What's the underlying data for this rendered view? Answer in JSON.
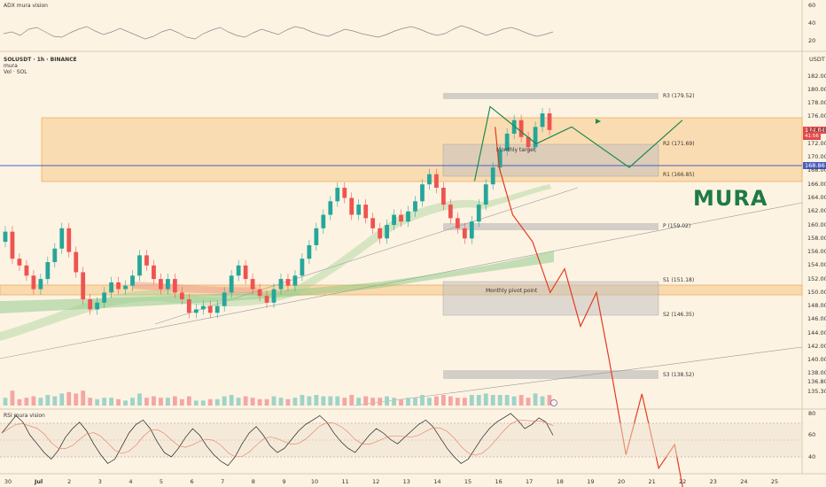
{
  "adx_panel": {
    "title": "ADX mura vision",
    "ticks": [
      "60",
      "40",
      "20"
    ],
    "values": [
      28,
      30,
      26,
      33,
      35,
      30,
      25,
      24,
      29,
      33,
      36,
      31,
      27,
      30,
      34,
      30,
      26,
      22,
      25,
      30,
      33,
      29,
      24,
      22,
      28,
      32,
      35,
      30,
      26,
      24,
      29,
      33,
      30,
      27,
      32,
      36,
      34,
      30,
      27,
      25,
      29,
      33,
      31,
      28,
      26,
      24,
      27,
      31,
      34,
      36,
      33,
      29,
      26,
      28,
      33,
      37,
      34,
      30,
      26,
      29,
      33,
      35,
      32,
      28,
      25,
      27,
      30
    ]
  },
  "main_chart": {
    "symbol_line": "SOLUSDT · 1h · BINANCE",
    "indicator_line": "mura",
    "volume_line": "Vol · SOL",
    "currency": "USDT",
    "watermark": "MURA",
    "price_ticks": [
      "182.00",
      "180.00",
      "178.00",
      "176.00",
      "174.00",
      "172.00",
      "170.00",
      "168.00",
      "166.00",
      "164.00",
      "162.00",
      "160.00",
      "158.00",
      "156.00",
      "154.00",
      "152.00",
      "150.00",
      "148.00",
      "146.00",
      "144.00",
      "142.00",
      "140.00",
      "138.00",
      "136.80",
      "135.30"
    ],
    "current_price": "174.04",
    "countdown": "41:56",
    "hline_price_label": "168.86",
    "pivot_labels": {
      "r3": "R3 (179.52)",
      "r2": "R2 (171.69)",
      "r1": "R1 (166.85)",
      "p": "P (159.02)",
      "s1": "S1 (151.18)",
      "s2": "S2 (146.35)",
      "s3": "S3 (138.52)"
    },
    "zone_labels": {
      "monthly_target": "Monthly target",
      "monthly_pivot": "Monthly pivot point"
    },
    "candles": [
      [
        157.5,
        159.0
      ],
      [
        159.0,
        155.0
      ],
      [
        155.0,
        154.0
      ],
      [
        154.0,
        152.5
      ],
      [
        152.5,
        150.5
      ],
      [
        150.5,
        152.0
      ],
      [
        152.0,
        154.5
      ],
      [
        154.5,
        156.5
      ],
      [
        156.5,
        159.5
      ],
      [
        159.5,
        156.0
      ],
      [
        156.0,
        153.0
      ],
      [
        153.0,
        149.0
      ],
      [
        149.0,
        147.5
      ],
      [
        147.5,
        148.5
      ],
      [
        148.5,
        150.0
      ],
      [
        150.0,
        151.5
      ],
      [
        151.5,
        150.5
      ],
      [
        150.5,
        151.0
      ],
      [
        151.0,
        152.5
      ],
      [
        152.5,
        155.5
      ],
      [
        155.5,
        154.0
      ],
      [
        154.0,
        152.0
      ],
      [
        152.0,
        150.5
      ],
      [
        150.5,
        152.0
      ],
      [
        152.0,
        150.0
      ],
      [
        150.0,
        149.0
      ],
      [
        149.0,
        147.0
      ],
      [
        147.0,
        147.5
      ],
      [
        147.5,
        148.0
      ],
      [
        148.0,
        147.0
      ],
      [
        147.0,
        148.0
      ],
      [
        148.0,
        150.0
      ],
      [
        150.0,
        152.5
      ],
      [
        152.5,
        154.0
      ],
      [
        154.0,
        152.0
      ],
      [
        152.0,
        150.5
      ],
      [
        150.5,
        149.5
      ],
      [
        149.5,
        148.5
      ],
      [
        148.5,
        150.5
      ],
      [
        150.5,
        152.0
      ],
      [
        152.0,
        151.0
      ],
      [
        151.0,
        152.5
      ],
      [
        152.5,
        155.0
      ],
      [
        155.0,
        157.0
      ],
      [
        157.0,
        159.5
      ],
      [
        159.5,
        161.5
      ],
      [
        161.5,
        163.5
      ],
      [
        163.5,
        165.5
      ],
      [
        165.5,
        164.0
      ],
      [
        164.0,
        161.5
      ],
      [
        161.5,
        163.0
      ],
      [
        163.0,
        161.0
      ],
      [
        161.0,
        159.5
      ],
      [
        159.5,
        158.0
      ],
      [
        158.0,
        160.0
      ],
      [
        160.0,
        161.5
      ],
      [
        161.5,
        160.5
      ],
      [
        160.5,
        162.0
      ],
      [
        162.0,
        163.5
      ],
      [
        163.5,
        166.0
      ],
      [
        166.0,
        167.5
      ],
      [
        167.5,
        165.5
      ],
      [
        165.5,
        163.0
      ],
      [
        163.0,
        161.0
      ],
      [
        161.0,
        159.5
      ],
      [
        159.5,
        158.0
      ],
      [
        158.0,
        160.5
      ],
      [
        160.5,
        163.0
      ],
      [
        163.0,
        166.0
      ],
      [
        166.0,
        168.5
      ],
      [
        168.5,
        171.0
      ],
      [
        171.0,
        173.5
      ],
      [
        173.5,
        175.5
      ],
      [
        175.5,
        173.0
      ],
      [
        173.0,
        171.5
      ],
      [
        171.5,
        174.5
      ],
      [
        174.5,
        176.5
      ],
      [
        176.5,
        174.04
      ]
    ],
    "scenario_up": [
      [
        172.2,
        166.5
      ],
      [
        179.2,
        177.5
      ],
      [
        200.0,
        172.0
      ],
      [
        216.0,
        174.5
      ],
      [
        242.0,
        168.5
      ],
      [
        266.0,
        175.5
      ]
    ],
    "scenario_down": [
      [
        193.0,
        174.5
      ],
      [
        198.0,
        168.5
      ],
      [
        215.0,
        161.5
      ],
      [
        240.0,
        157.5
      ],
      [
        262.0,
        150.0
      ],
      [
        280.0,
        153.5
      ],
      [
        300.0,
        145.0
      ],
      [
        320.0,
        150.0
      ],
      [
        336.0,
        140.0
      ],
      [
        357.0,
        126.0
      ],
      [
        377.0,
        135.0
      ],
      [
        398.0,
        124.0
      ],
      [
        418.0,
        127.5
      ],
      [
        430.0,
        120.0
      ]
    ]
  },
  "rsi_panel": {
    "title": "RSI mura vision",
    "ticks": [
      "80",
      "60",
      "40"
    ],
    "values": [
      62,
      70,
      78,
      72,
      60,
      52,
      44,
      38,
      46,
      58,
      66,
      72,
      64,
      52,
      42,
      34,
      38,
      50,
      62,
      70,
      74,
      66,
      54,
      44,
      40,
      48,
      58,
      66,
      60,
      50,
      42,
      36,
      32,
      40,
      52,
      62,
      68,
      60,
      50,
      44,
      48,
      56,
      64,
      70,
      74,
      78,
      72,
      62,
      54,
      48,
      44,
      52,
      60,
      66,
      62,
      56,
      52,
      58,
      64,
      70,
      74,
      68,
      58,
      48,
      40,
      34,
      38,
      48,
      58,
      66,
      72,
      76,
      80,
      74,
      66,
      70,
      76,
      72,
      60
    ]
  },
  "date_axis": [
    "30",
    "Jul",
    "2",
    "3",
    "4",
    "5",
    "6",
    "7",
    "8",
    "9",
    "10",
    "11",
    "12",
    "13",
    "14",
    "15",
    "16",
    "17",
    "18",
    "19",
    "20",
    "21",
    "22",
    "23",
    "24",
    "25"
  ]
}
